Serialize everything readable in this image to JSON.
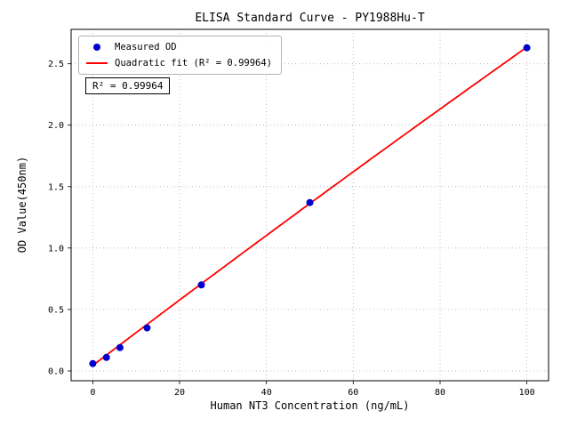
{
  "chart_data": {
    "type": "scatter",
    "title": "ELISA Standard Curve - PY1988Hu-T",
    "xlabel": "Human NT3 Concentration (ng/mL)",
    "ylabel": "OD Value(450nm)",
    "xlim": [
      -5,
      105
    ],
    "ylim": [
      -0.08,
      2.78
    ],
    "xticks": [
      0,
      20,
      40,
      60,
      80,
      100
    ],
    "yticks": [
      0.0,
      0.5,
      1.0,
      1.5,
      2.0,
      2.5
    ],
    "grid": true,
    "grid_color": "#b0b0b0",
    "legend_position": "upper left",
    "annotation": "R² = 0.99964",
    "series": [
      {
        "name": "Measured OD",
        "type": "scatter",
        "color": "#0000cd",
        "x": [
          0,
          3.125,
          6.25,
          12.5,
          25,
          50,
          100
        ],
        "y": [
          0.06,
          0.11,
          0.19,
          0.35,
          0.7,
          1.37,
          2.63
        ]
      },
      {
        "name": "Quadratic fit (R² = 0.99964)",
        "type": "line",
        "color": "#ff0000",
        "fit": {
          "a": -9e-06,
          "b": 0.0268,
          "c": 0.045
        },
        "x_range": [
          0,
          100
        ]
      }
    ]
  }
}
